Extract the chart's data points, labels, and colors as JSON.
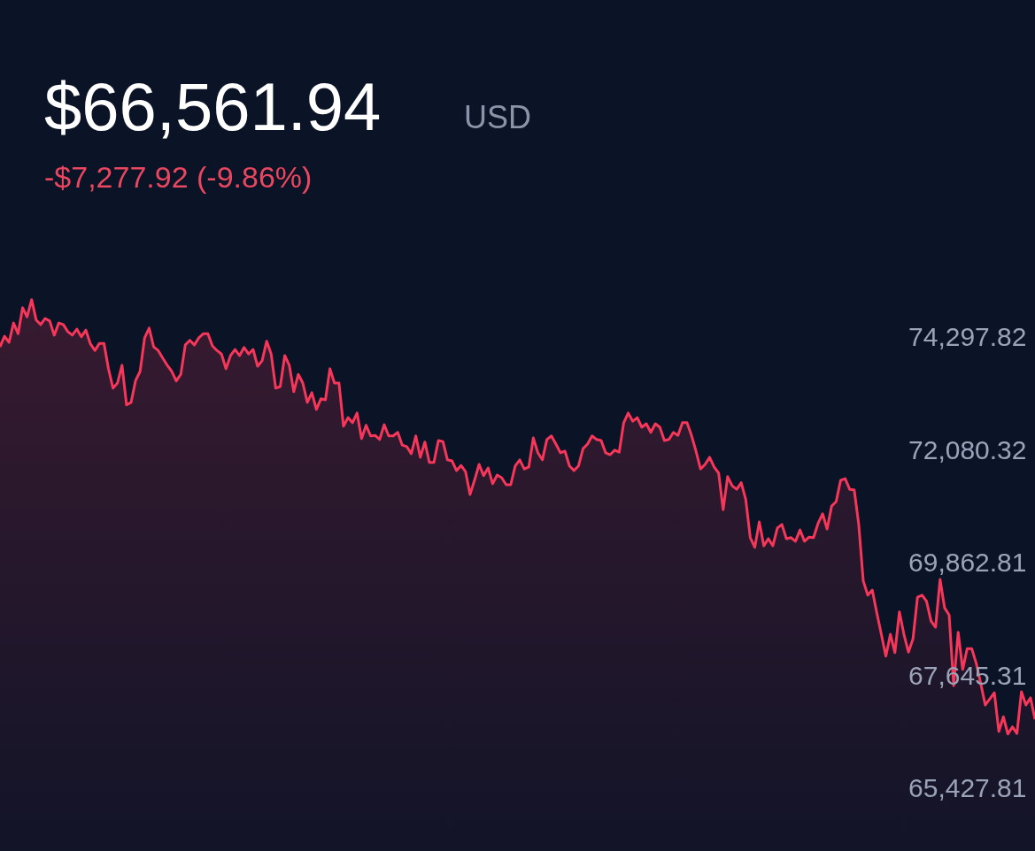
{
  "chart_data": {
    "type": "area",
    "title": "$66,561.94",
    "subtitle": "-$7,277.92 (-9.86%)",
    "annotations": [
      "USD"
    ],
    "categories": [
      null,
      null,
      null,
      null,
      null,
      null,
      null,
      null,
      null,
      null,
      null,
      null,
      null,
      null,
      null,
      null,
      null,
      null,
      null,
      null,
      null,
      null,
      null,
      null,
      null,
      null,
      null,
      null,
      null,
      null,
      null,
      null,
      null,
      null,
      null,
      null,
      null,
      null,
      null,
      null,
      null,
      null,
      null,
      null,
      null,
      null,
      null,
      null,
      null,
      null,
      null,
      null,
      null,
      null,
      null,
      null,
      null,
      null,
      null,
      null,
      null,
      null,
      null,
      null,
      null,
      null,
      null,
      null,
      null,
      null,
      null,
      null,
      null,
      null,
      null,
      null,
      null,
      null,
      null,
      null,
      null,
      null,
      null,
      null,
      null,
      null,
      null,
      null,
      null,
      null,
      null,
      null,
      null,
      null,
      null,
      null,
      null,
      null,
      null,
      null,
      null,
      null,
      null,
      null,
      null,
      null,
      null,
      null,
      null,
      null,
      null,
      null,
      null,
      null,
      null,
      null,
      null,
      null,
      null,
      null,
      null,
      null,
      null,
      null,
      null,
      null,
      null,
      null,
      null,
      null,
      null,
      null,
      null,
      null,
      null,
      null,
      null,
      null,
      null,
      null,
      null,
      null,
      null,
      null,
      null,
      null,
      null,
      null,
      null,
      null,
      null,
      null,
      null,
      null,
      null,
      null,
      null,
      null,
      null,
      null,
      null,
      null,
      null,
      null,
      null,
      null,
      null,
      null,
      null,
      null,
      null,
      null,
      null,
      null,
      null,
      null,
      null,
      null,
      null,
      null,
      null,
      null,
      null,
      null,
      null,
      null,
      null,
      null,
      null,
      null,
      null,
      null,
      null,
      null,
      null,
      null,
      null,
      null,
      null,
      null,
      null,
      null,
      null,
      null,
      null,
      null,
      null,
      null,
      null,
      null,
      null,
      null,
      null,
      null,
      null,
      null,
      null,
      null,
      null,
      null,
      null,
      null,
      null,
      null,
      null,
      null,
      null,
      null,
      null,
      null
    ],
    "series": [
      {
        "color": "#f7375a",
        "values": [
          74120,
          74330,
          74210,
          74590,
          74380,
          74890,
          74710,
          75050,
          74650,
          74560,
          74680,
          74630,
          74350,
          74590,
          74560,
          74420,
          74350,
          74470,
          74320,
          74450,
          74180,
          74050,
          74190,
          74190,
          73690,
          73310,
          73410,
          73760,
          72980,
          73030,
          73460,
          73640,
          74300,
          74490,
          74120,
          74050,
          73900,
          73760,
          73640,
          73450,
          73580,
          74160,
          74250,
          74160,
          74300,
          74380,
          74380,
          74140,
          74050,
          73980,
          73690,
          73950,
          74070,
          73950,
          74110,
          73980,
          74070,
          73740,
          73850,
          74230,
          73980,
          73310,
          73340,
          73950,
          73760,
          73240,
          73580,
          73410,
          73030,
          73220,
          72890,
          73100,
          73080,
          73690,
          73410,
          73410,
          72560,
          72730,
          72630,
          72820,
          72320,
          72580,
          72370,
          72380,
          72300,
          72590,
          72370,
          72370,
          72440,
          72190,
          72160,
          72020,
          72370,
          71950,
          72250,
          71850,
          71850,
          72280,
          72260,
          71900,
          71880,
          71690,
          71790,
          71670,
          71220,
          71500,
          71810,
          71590,
          71740,
          71430,
          71600,
          71550,
          71410,
          71410,
          71780,
          71900,
          71720,
          71760,
          72330,
          72040,
          71900,
          72300,
          72370,
          72210,
          72040,
          72070,
          71780,
          71690,
          71780,
          72120,
          72210,
          72370,
          72300,
          72280,
          72040,
          72000,
          72090,
          72050,
          72630,
          72820,
          72660,
          72730,
          72540,
          72610,
          72440,
          72610,
          72540,
          72280,
          72300,
          72440,
          72380,
          72630,
          72630,
          72380,
          72070,
          71720,
          71810,
          71950,
          71760,
          71640,
          70920,
          71570,
          71390,
          71320,
          71450,
          71120,
          70370,
          70180,
          70680,
          70210,
          70350,
          70210,
          70560,
          70630,
          70350,
          70370,
          70300,
          70520,
          70300,
          70380,
          70370,
          70650,
          70840,
          70540,
          70990,
          71080,
          71500,
          71530,
          71320,
          71310,
          70630,
          69520,
          69240,
          69340,
          68890,
          68470,
          68040,
          68470,
          68110,
          68910,
          68470,
          68120,
          68380,
          69200,
          69240,
          69120,
          68730,
          68610,
          69550,
          68990,
          68850,
          67460,
          68510,
          67780,
          68190,
          68190,
          67900,
          67500,
          67080,
          67200,
          67320,
          66560,
          66850,
          66510,
          66650,
          66520,
          67340,
          67080,
          67220,
          66800
        ]
      }
    ],
    "ylim": [
      64210,
      80940
    ],
    "yticks": [
      {
        "value": 74297.82,
        "label": "74,297.82"
      },
      {
        "value": 72080.32,
        "label": "72,080.32"
      },
      {
        "value": 69862.81,
        "label": "69,862.81"
      },
      {
        "value": 67645.31,
        "label": "67,645.31"
      },
      {
        "value": 65427.81,
        "label": "65,427.81"
      }
    ],
    "tick_labels": "y",
    "grid": false
  }
}
